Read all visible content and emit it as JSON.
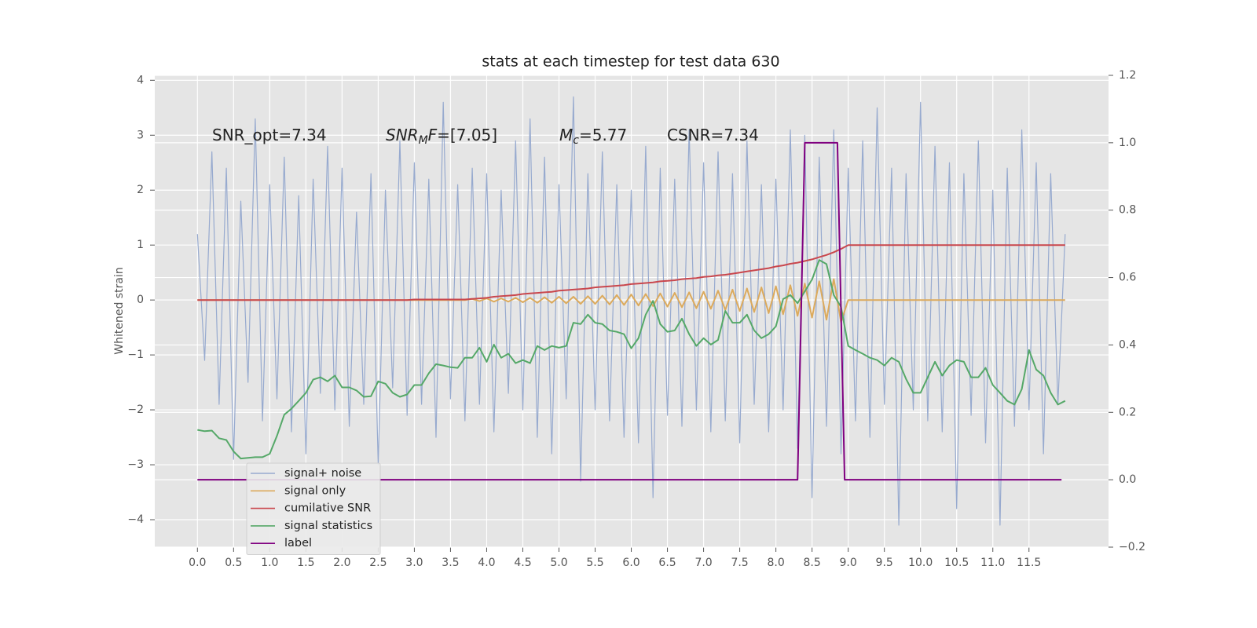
{
  "chart_data": {
    "type": "line",
    "title": "stats at each timestep for test data 630",
    "y_label": "Whitened strain",
    "grid": true,
    "legend": "lower left",
    "background": "#e5e5e5",
    "xlim": [
      -0.59,
      12.6
    ],
    "ylim": [
      -4.5,
      4.09
    ],
    "y2lim": [
      -0.2,
      1.2
    ],
    "xticks": [
      {
        "value": 0,
        "label": "0.0"
      },
      0.5,
      {
        "value": 1,
        "label": "1.0"
      },
      1.5,
      {
        "value": 2,
        "label": "2.0"
      },
      2.5,
      {
        "value": 3,
        "label": "3.0"
      },
      3.5,
      {
        "value": 4,
        "label": "4.0"
      },
      4.5,
      {
        "value": 5,
        "label": "5.0"
      },
      5.5,
      {
        "value": 6,
        "label": "6.0"
      },
      6.5,
      {
        "value": 7,
        "label": "7.0"
      },
      7.5,
      {
        "value": 8,
        "label": "8.0"
      },
      8.5,
      {
        "value": 9,
        "label": "9.0"
      },
      9.5,
      {
        "value": 10,
        "label": "10.0"
      },
      10.5,
      {
        "value": 11,
        "label": "11.0"
      },
      11.5
    ],
    "yticks": [
      {
        "value": -4,
        "label": "−4"
      },
      {
        "value": -3,
        "label": "−3"
      },
      {
        "value": -2,
        "label": "−2"
      },
      {
        "value": -1,
        "label": "−1"
      },
      0,
      1,
      2,
      3,
      4
    ],
    "y2ticks": [
      {
        "value": -0.2,
        "label": "−0.2"
      },
      {
        "value": 0,
        "label": "0.0"
      },
      0.2,
      0.4,
      0.6,
      0.8,
      {
        "value": 1,
        "label": "1.0"
      },
      1.2
    ],
    "annotations": [
      [
        {
          "text": "SNR_opt=7.34",
          "style": "normal"
        }
      ],
      [
        {
          "text": "SNR",
          "style": "italic"
        },
        {
          "text": "M",
          "style": "italic-sub"
        },
        {
          "text": "F",
          "style": "italic"
        },
        {
          "text": "=[7.05]",
          "style": "normal"
        }
      ],
      [
        {
          "text": "M",
          "style": "italic"
        },
        {
          "text": "c",
          "style": "italic-sub"
        },
        {
          "text": "=5.77",
          "style": "normal"
        }
      ],
      [
        {
          "text": "CSNR=7.34",
          "style": "normal"
        }
      ]
    ],
    "x": [
      0,
      0.1,
      0.2,
      0.3,
      0.4,
      0.5,
      0.6,
      0.7,
      0.8,
      0.9,
      1,
      1.1,
      1.2,
      1.3,
      1.4,
      1.5,
      1.6,
      1.7,
      1.8,
      1.9,
      2,
      2.1,
      2.2,
      2.3,
      2.4,
      2.5,
      2.6,
      2.7,
      2.8,
      2.9,
      3,
      3.1,
      3.2,
      3.3,
      3.4,
      3.5,
      3.6,
      3.7,
      3.8,
      3.9,
      4,
      4.1,
      4.2,
      4.3,
      4.4,
      4.5,
      4.6,
      4.7,
      4.8,
      4.9,
      5,
      5.1,
      5.2,
      5.3,
      5.4,
      5.5,
      5.6,
      5.7,
      5.8,
      5.9,
      6,
      6.1,
      6.2,
      6.3,
      6.4,
      6.5,
      6.6,
      6.7,
      6.8,
      6.9,
      7,
      7.1,
      7.2,
      7.3,
      7.4,
      7.5,
      7.6,
      7.7,
      7.8,
      7.9,
      8,
      8.1,
      8.2,
      8.3,
      8.4,
      8.5,
      8.6,
      8.7,
      8.8,
      8.9,
      9,
      9.1,
      9.2,
      9.3,
      9.4,
      9.5,
      9.6,
      9.7,
      9.8,
      9.9,
      10,
      10.1,
      10.2,
      10.3,
      10.4,
      10.5,
      10.6,
      10.7,
      10.8,
      10.9,
      11,
      11.1,
      11.2,
      11.3,
      11.4,
      11.5,
      11.6,
      11.7,
      11.8,
      11.9,
      12
    ],
    "series": [
      {
        "name": "signal+ noise",
        "color": "#97aacf",
        "width": 1.2,
        "values": [
          1.2,
          -1.1,
          2.7,
          -1.9,
          2.4,
          -2.9,
          1.8,
          -1.5,
          3.3,
          -2.2,
          2.1,
          -1.8,
          2.6,
          -2.4,
          1.9,
          -2.8,
          2.2,
          -1.7,
          2.8,
          -2.0,
          2.4,
          -2.3,
          1.6,
          -1.9,
          2.3,
          -3.0,
          2.0,
          -1.6,
          2.9,
          -2.1,
          2.5,
          -1.9,
          2.2,
          -2.5,
          3.6,
          -1.8,
          2.1,
          -2.2,
          2.4,
          -1.9,
          2.3,
          -2.4,
          2.0,
          -1.7,
          2.9,
          -2.0,
          3.3,
          -2.5,
          2.6,
          -2.8,
          2.1,
          -1.8,
          3.7,
          -3.3,
          2.3,
          -2.0,
          2.7,
          -2.2,
          2.1,
          -2.5,
          2.0,
          -2.6,
          2.8,
          -3.6,
          2.4,
          -2.1,
          2.2,
          -2.3,
          3.1,
          -2.0,
          2.5,
          -2.4,
          2.7,
          -2.2,
          2.3,
          -2.6,
          2.9,
          -1.9,
          2.1,
          -2.4,
          2.2,
          -2.0,
          3.1,
          -2.7,
          3.0,
          -3.6,
          2.6,
          -2.3,
          3.1,
          -2.8,
          2.4,
          -2.2,
          2.9,
          -2.5,
          3.5,
          -1.9,
          2.4,
          -4.1,
          2.3,
          -2.0,
          3.6,
          -2.2,
          2.8,
          -2.4,
          2.5,
          -3.8,
          2.3,
          -2.1,
          2.9,
          -2.6,
          2.0,
          -4.1,
          2.4,
          -2.3,
          3.1,
          -2.0,
          2.5,
          -2.8,
          2.3,
          -1.9,
          1.2
        ]
      },
      {
        "name": "signal only",
        "color": "#dcaa5c",
        "width": 2,
        "values": [
          0,
          0,
          0,
          0,
          0,
          0,
          0,
          0,
          0,
          0,
          0,
          0,
          0,
          0,
          0,
          0,
          0,
          0,
          0,
          0,
          0,
          0,
          0,
          0,
          0,
          0,
          0,
          0,
          0,
          0,
          0,
          0,
          0,
          0,
          0,
          0,
          0,
          0,
          0.02,
          -0.02,
          0.03,
          -0.03,
          0.03,
          -0.03,
          0.04,
          -0.04,
          0.04,
          -0.05,
          0.05,
          -0.05,
          0.06,
          -0.06,
          0.06,
          -0.07,
          0.07,
          -0.07,
          0.08,
          -0.08,
          0.09,
          -0.09,
          0.1,
          -0.1,
          0.11,
          -0.11,
          0.12,
          -0.12,
          0.13,
          -0.13,
          0.14,
          -0.15,
          0.15,
          -0.16,
          0.17,
          -0.18,
          0.19,
          -0.2,
          0.21,
          -0.22,
          0.23,
          -0.24,
          0.25,
          -0.26,
          0.27,
          -0.29,
          0.3,
          -0.32,
          0.34,
          -0.36,
          0.38,
          -0.4,
          0,
          0,
          0,
          0,
          0,
          0,
          0,
          0,
          0,
          0,
          0,
          0,
          0,
          0,
          0,
          0,
          0,
          0,
          0,
          0,
          0,
          0,
          0,
          0,
          0,
          0,
          0,
          0,
          0,
          0,
          0
        ]
      },
      {
        "name": "cumilative SNR",
        "color": "#c9474d",
        "width": 2,
        "values": [
          0,
          0,
          0,
          0,
          0,
          0,
          0,
          0,
          0,
          0,
          0,
          0,
          0,
          0,
          0,
          0,
          0,
          0,
          0,
          0,
          0,
          0,
          0,
          0,
          0,
          0,
          0,
          0,
          0,
          0,
          0.01,
          0.01,
          0.01,
          0.01,
          0.01,
          0.01,
          0.01,
          0.01,
          0.02,
          0.03,
          0.04,
          0.06,
          0.07,
          0.08,
          0.09,
          0.11,
          0.12,
          0.13,
          0.14,
          0.15,
          0.17,
          0.18,
          0.19,
          0.2,
          0.21,
          0.23,
          0.24,
          0.25,
          0.26,
          0.27,
          0.29,
          0.3,
          0.31,
          0.32,
          0.34,
          0.35,
          0.36,
          0.38,
          0.39,
          0.4,
          0.42,
          0.43,
          0.45,
          0.46,
          0.48,
          0.5,
          0.52,
          0.54,
          0.56,
          0.58,
          0.61,
          0.63,
          0.66,
          0.68,
          0.71,
          0.74,
          0.78,
          0.82,
          0.87,
          0.93,
          1,
          1,
          1,
          1,
          1,
          1,
          1,
          1,
          1,
          1,
          1,
          1,
          1,
          1,
          1,
          1,
          1,
          1,
          1,
          1,
          1,
          1,
          1,
          1,
          1,
          1,
          1,
          1,
          1,
          1,
          1
        ]
      },
      {
        "name": "signal statistics",
        "color": "#55a868",
        "width": 2,
        "axis": "y2",
        "values": [
          0.148,
          0.144,
          0.146,
          0.123,
          0.118,
          0.084,
          0.063,
          0.065,
          0.067,
          0.067,
          0.077,
          0.13,
          0.193,
          0.211,
          0.234,
          0.258,
          0.297,
          0.304,
          0.292,
          0.309,
          0.274,
          0.274,
          0.265,
          0.246,
          0.248,
          0.292,
          0.285,
          0.258,
          0.246,
          0.253,
          0.281,
          0.281,
          0.316,
          0.343,
          0.339,
          0.334,
          0.332,
          0.362,
          0.362,
          0.392,
          0.35,
          0.401,
          0.362,
          0.374,
          0.346,
          0.355,
          0.346,
          0.397,
          0.385,
          0.397,
          0.392,
          0.397,
          0.466,
          0.462,
          0.49,
          0.466,
          0.462,
          0.443,
          0.439,
          0.432,
          0.39,
          0.42,
          0.49,
          0.531,
          0.462,
          0.439,
          0.443,
          0.478,
          0.432,
          0.397,
          0.42,
          0.401,
          0.415,
          0.501,
          0.466,
          0.466,
          0.49,
          0.443,
          0.42,
          0.432,
          0.455,
          0.536,
          0.548,
          0.524,
          0.559,
          0.594,
          0.652,
          0.64,
          0.548,
          0.513,
          0.397,
          0.385,
          0.374,
          0.362,
          0.355,
          0.339,
          0.362,
          0.35,
          0.299,
          0.258,
          0.258,
          0.304,
          0.35,
          0.309,
          0.339,
          0.355,
          0.35,
          0.304,
          0.304,
          0.332,
          0.281,
          0.258,
          0.234,
          0.223,
          0.269,
          0.385,
          0.327,
          0.309,
          0.258,
          0.223,
          0.234
        ]
      },
      {
        "name": "label",
        "color": "#800080",
        "width": 2,
        "axis": "y2",
        "x": [
          0,
          8.3,
          8.4,
          8.85,
          8.95,
          11.95
        ],
        "values": [
          0,
          0,
          1,
          1,
          0,
          0
        ]
      }
    ]
  }
}
